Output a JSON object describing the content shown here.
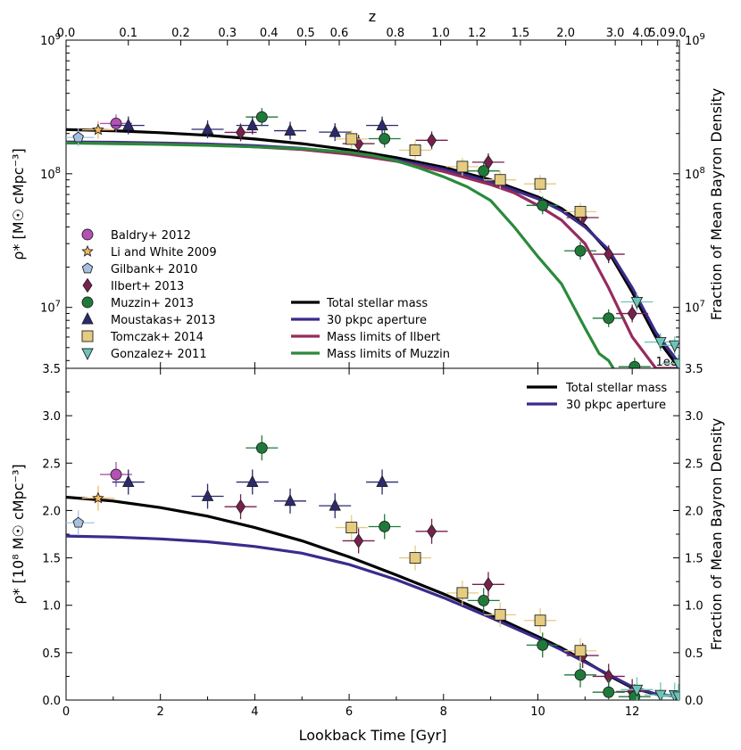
{
  "chart_data": [
    {
      "type": "scatter",
      "title": "",
      "xlabel": "",
      "ylabel": "ρ* [M☉ cMpc⁻³]",
      "ylabel_right": "Fraction of Mean Bayron Density",
      "top_axis_label": "z",
      "top_ticks": [
        "0.0",
        "0.1",
        "0.2",
        "0.3",
        "0.4",
        "0.5",
        "0.6",
        "0.8",
        "1.0",
        "1.2",
        "1.5",
        "2.0",
        "3.0",
        "4.0",
        "5.0",
        "9.0"
      ],
      "top_tick_ages": [
        0,
        1.32,
        2.43,
        3.42,
        4.3,
        5.08,
        5.79,
        6.98,
        7.94,
        8.71,
        9.63,
        10.59,
        11.64,
        12.2,
        12.54,
        12.95
      ],
      "xlim": [
        0,
        13
      ],
      "ylim": [
        3500000,
        1000000000
      ],
      "yscale": "log",
      "y_tick_labels": [
        "10^7",
        "10^8",
        "10^9"
      ],
      "y_tick_values": [
        10000000,
        100000000,
        1000000000
      ],
      "y_top_right_label": "10^9",
      "y_bottom_label": "3.5",
      "offset_label": "1e8",
      "curves": [
        {
          "name": "Total stellar mass",
          "color": "#000000",
          "x": [
            0,
            1,
            2,
            3,
            4,
            5,
            6,
            7,
            8,
            9,
            10,
            10.5,
            11,
            11.5,
            12,
            12.5,
            13
          ],
          "y": [
            214000000,
            210000000,
            203000000,
            194000000,
            182000000,
            168000000,
            151000000,
            132000000,
            112000000,
            90000000,
            67000000,
            55000000,
            41000000,
            26000000,
            13000000,
            6000000,
            3500000
          ]
        },
        {
          "name": "30 pkpc aperture",
          "color": "#3a2b8c",
          "x": [
            0,
            1,
            2,
            3,
            4,
            5,
            6,
            7,
            8,
            9,
            10,
            10.5,
            11,
            11.5,
            12,
            12.5,
            13
          ],
          "y": [
            173000000,
            172000000,
            170000000,
            167000000,
            162000000,
            155000000,
            143000000,
            127000000,
            108000000,
            87000000,
            65000000,
            53000000,
            40000000,
            27000000,
            14000000,
            6500000,
            3800000
          ]
        },
        {
          "name": "Mass limits of Ilbert",
          "color": "#962b5e",
          "x": [
            0,
            1,
            2,
            3,
            4,
            5,
            6,
            7,
            8,
            9,
            9.5,
            10,
            10.5,
            11,
            11.5,
            12,
            12.5,
            13
          ],
          "y": [
            170000000,
            169000000,
            167000000,
            164000000,
            159000000,
            152000000,
            140000000,
            124000000,
            104000000,
            83000000,
            72000000,
            58000000,
            45000000,
            30000000,
            14000000,
            6000000,
            3500000,
            3500000
          ]
        },
        {
          "name": "Mass limits of Muzzin",
          "color": "#2a8a3c",
          "x": [
            0,
            1,
            2,
            3,
            4,
            5,
            6,
            6.5,
            7,
            7.5,
            8,
            8.5,
            9,
            9.5,
            10,
            10.5,
            11,
            11.3,
            11.5,
            11.6
          ],
          "y": [
            170000000,
            168000000,
            166000000,
            163000000,
            159000000,
            154000000,
            145000000,
            137000000,
            125000000,
            110000000,
            95000000,
            80000000,
            63000000,
            40000000,
            24000000,
            15000000,
            7000000,
            4500000,
            4000000,
            3500000
          ]
        }
      ],
      "series": [
        {
          "name": "Baldry+ 2012",
          "marker": "circle",
          "color": "#b550b5",
          "points": [
            {
              "x": 1.06,
              "y": 238000000
            }
          ]
        },
        {
          "name": "Li and White 2009",
          "marker": "star",
          "color": "#f4b860",
          "points": [
            {
              "x": 0.68,
              "y": 213000000
            }
          ]
        },
        {
          "name": "Gilbank+ 2010",
          "marker": "pentagon",
          "color": "#a8c0e0",
          "points": [
            {
              "x": 0.26,
              "y": 187000000
            }
          ]
        },
        {
          "name": "Ilbert+ 2013",
          "marker": "diamond",
          "color": "#7a1f4e",
          "points": [
            {
              "x": 3.7,
              "y": 204000000
            },
            {
              "x": 6.2,
              "y": 168000000
            },
            {
              "x": 7.75,
              "y": 178000000
            },
            {
              "x": 8.95,
              "y": 122000000
            },
            {
              "x": 10.95,
              "y": 47000000
            },
            {
              "x": 11.5,
              "y": 25000000
            },
            {
              "x": 12.0,
              "y": 9000000
            }
          ]
        },
        {
          "name": "Muzzin+ 2013",
          "marker": "circle",
          "color": "#1f7a3a",
          "points": [
            {
              "x": 4.15,
              "y": 266000000
            },
            {
              "x": 6.75,
              "y": 183000000
            },
            {
              "x": 8.85,
              "y": 105000000
            },
            {
              "x": 10.1,
              "y": 58000000
            },
            {
              "x": 10.9,
              "y": 26500000
            },
            {
              "x": 11.5,
              "y": 8300000
            },
            {
              "x": 12.05,
              "y": 3600000
            }
          ]
        },
        {
          "name": "Moustakas+ 2013",
          "marker": "triangle-up",
          "color": "#2b2970",
          "points": [
            {
              "x": 1.32,
              "y": 230000000
            },
            {
              "x": 3.0,
              "y": 215000000
            },
            {
              "x": 3.95,
              "y": 230000000
            },
            {
              "x": 4.75,
              "y": 210000000
            },
            {
              "x": 5.7,
              "y": 205000000
            },
            {
              "x": 6.7,
              "y": 230000000
            }
          ]
        },
        {
          "name": "Tomczak+ 2014",
          "marker": "square",
          "color": "#e6cc80",
          "points": [
            {
              "x": 6.05,
              "y": 182000000
            },
            {
              "x": 7.4,
              "y": 150000000
            },
            {
              "x": 8.4,
              "y": 113000000
            },
            {
              "x": 9.2,
              "y": 90000000
            },
            {
              "x": 10.05,
              "y": 84000000
            },
            {
              "x": 10.9,
              "y": 52000000
            }
          ]
        },
        {
          "name": "Gonzalez+ 2011",
          "marker": "triangle-down",
          "color": "#6cc6b8",
          "points": [
            {
              "x": 12.1,
              "y": 11000000
            },
            {
              "x": 12.6,
              "y": 5500000
            },
            {
              "x": 12.9,
              "y": 5200000
            },
            {
              "x": 12.98,
              "y": 3800000
            }
          ]
        }
      ]
    },
    {
      "type": "scatter",
      "xlabel": "Lookback Time [Gyr]",
      "ylabel": "ρ* [10⁸ M☉ cMpc⁻³]",
      "ylabel_right": "Fraction of Mean Bayron Density",
      "xlim": [
        0,
        13
      ],
      "ylim": [
        0,
        3.5
      ],
      "x_ticks": [
        "0",
        "2",
        "4",
        "6",
        "8",
        "10",
        "12"
      ],
      "y_ticks": [
        "0.0",
        "0.5",
        "1.0",
        "1.5",
        "2.0",
        "2.5",
        "3.0"
      ],
      "curves": [
        {
          "name": "Total stellar mass",
          "color": "#000000",
          "x": [
            0,
            1,
            2,
            3,
            4,
            5,
            6,
            7,
            8,
            9,
            10,
            10.5,
            11,
            11.5,
            12,
            12.5,
            13
          ],
          "y": [
            2.14,
            2.1,
            2.03,
            1.94,
            1.82,
            1.68,
            1.51,
            1.32,
            1.12,
            0.9,
            0.67,
            0.55,
            0.41,
            0.26,
            0.13,
            0.06,
            0.035
          ]
        },
        {
          "name": "30 pkpc aperture",
          "color": "#3a2b8c",
          "x": [
            0,
            1,
            2,
            3,
            4,
            5,
            6,
            7,
            8,
            9,
            10,
            10.5,
            11,
            11.5,
            12,
            12.5,
            13
          ],
          "y": [
            1.73,
            1.72,
            1.7,
            1.67,
            1.62,
            1.55,
            1.43,
            1.27,
            1.08,
            0.87,
            0.65,
            0.53,
            0.4,
            0.27,
            0.14,
            0.065,
            0.038
          ]
        }
      ],
      "series": [
        {
          "name": "Baldry+ 2012",
          "marker": "circle",
          "color": "#b550b5",
          "points": [
            {
              "x": 1.06,
              "y": 2.38
            }
          ]
        },
        {
          "name": "Li and White 2009",
          "marker": "star",
          "color": "#f4b860",
          "points": [
            {
              "x": 0.68,
              "y": 2.13
            }
          ]
        },
        {
          "name": "Gilbank+ 2010",
          "marker": "pentagon",
          "color": "#a8c0e0",
          "points": [
            {
              "x": 0.26,
              "y": 1.87
            }
          ]
        },
        {
          "name": "Ilbert+ 2013",
          "marker": "diamond",
          "color": "#7a1f4e",
          "points": [
            {
              "x": 3.7,
              "y": 2.04
            },
            {
              "x": 6.2,
              "y": 1.68
            },
            {
              "x": 7.75,
              "y": 1.78
            },
            {
              "x": 8.95,
              "y": 1.22
            },
            {
              "x": 10.95,
              "y": 0.47
            },
            {
              "x": 11.5,
              "y": 0.25
            },
            {
              "x": 12.0,
              "y": 0.09
            }
          ]
        },
        {
          "name": "Muzzin+ 2013",
          "marker": "circle",
          "color": "#1f7a3a",
          "points": [
            {
              "x": 4.15,
              "y": 2.66
            },
            {
              "x": 6.75,
              "y": 1.83
            },
            {
              "x": 8.85,
              "y": 1.05
            },
            {
              "x": 10.1,
              "y": 0.58
            },
            {
              "x": 10.9,
              "y": 0.265
            },
            {
              "x": 11.5,
              "y": 0.083
            },
            {
              "x": 12.05,
              "y": 0.036
            }
          ]
        },
        {
          "name": "Moustakas+ 2013",
          "marker": "triangle-up",
          "color": "#2b2970",
          "points": [
            {
              "x": 1.32,
              "y": 2.3
            },
            {
              "x": 3.0,
              "y": 2.15
            },
            {
              "x": 3.95,
              "y": 2.3
            },
            {
              "x": 4.75,
              "y": 2.1
            },
            {
              "x": 5.7,
              "y": 2.05
            },
            {
              "x": 6.7,
              "y": 2.3
            }
          ]
        },
        {
          "name": "Tomczak+ 2014",
          "marker": "square",
          "color": "#e6cc80",
          "points": [
            {
              "x": 6.05,
              "y": 1.82
            },
            {
              "x": 7.4,
              "y": 1.5
            },
            {
              "x": 8.4,
              "y": 1.13
            },
            {
              "x": 9.2,
              "y": 0.9
            },
            {
              "x": 10.05,
              "y": 0.84
            },
            {
              "x": 10.9,
              "y": 0.52
            }
          ]
        },
        {
          "name": "Gonzalez+ 2011",
          "marker": "triangle-down",
          "color": "#6cc6b8",
          "points": [
            {
              "x": 12.1,
              "y": 0.11
            },
            {
              "x": 12.6,
              "y": 0.055
            },
            {
              "x": 12.9,
              "y": 0.052
            },
            {
              "x": 12.98,
              "y": 0.038
            }
          ]
        }
      ]
    }
  ],
  "legend_points": [
    "Baldry+ 2012",
    "Li and White 2009",
    "Gilbank+ 2010",
    "Ilbert+ 2013",
    "Muzzin+ 2013",
    "Moustakas+ 2013",
    "Tomczak+ 2014",
    "Gonzalez+ 2011"
  ],
  "legend_lines_top": [
    "Total stellar mass",
    "30 pkpc aperture",
    "Mass limits of Ilbert",
    "Mass limits of Muzzin"
  ],
  "legend_lines_bottom": [
    "Total stellar mass",
    "30 pkpc aperture"
  ]
}
